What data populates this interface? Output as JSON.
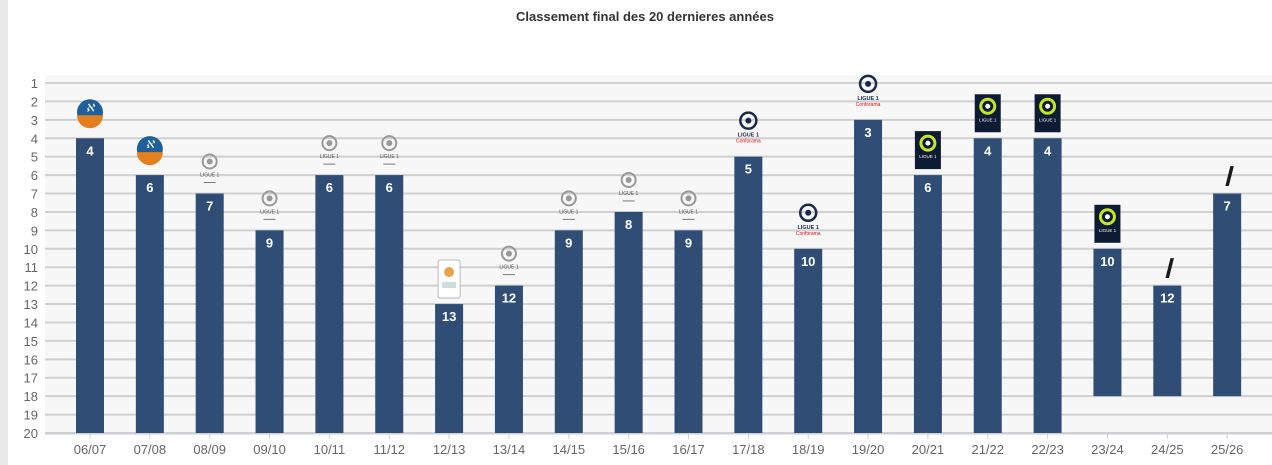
{
  "chart_data": {
    "type": "bar",
    "title": "Classement final des 20 dernieres années",
    "xlabel": "",
    "ylabel": "",
    "ylim": [
      1,
      20
    ],
    "y_inverted": true,
    "y_ticks": [
      "1",
      "2",
      "3",
      "4",
      "5",
      "6",
      "7",
      "8",
      "9",
      "10",
      "11",
      "12",
      "13",
      "14",
      "15",
      "16",
      "17",
      "18",
      "19",
      "20"
    ],
    "grid": true,
    "categories": [
      "06/07",
      "07/08",
      "08/09",
      "09/10",
      "10/11",
      "11/12",
      "12/13",
      "13/14",
      "14/15",
      "15/16",
      "16/17",
      "17/18",
      "18/19",
      "19/20",
      "20/21",
      "21/22",
      "22/23",
      "23/24",
      "24/25",
      "25/26"
    ],
    "values": [
      4,
      6,
      7,
      9,
      6,
      6,
      13,
      12,
      9,
      8,
      9,
      5,
      10,
      3,
      6,
      4,
      4,
      10,
      12,
      7
    ],
    "bar_base": [
      20,
      20,
      20,
      20,
      20,
      20,
      20,
      20,
      20,
      20,
      20,
      20,
      20,
      20,
      20,
      20,
      20,
      18,
      18,
      18
    ],
    "logos": [
      "ligue1-orange-icon",
      "ligue1-orange-icon",
      "ligue1-classic-icon",
      "ligue1-classic-icon",
      "ligue1-classic-icon",
      "ligue1-classic-icon",
      "ligue1-badge-icon",
      "ligue1-classic-icon",
      "ligue1-classic-icon",
      "ligue1-classic-icon",
      "ligue1-classic-icon",
      "ligue1-conforama-icon",
      "ligue1-conforama-icon",
      "ligue1-conforama-icon",
      "ligue1-ubereats-icon",
      "ligue1-ubereats-icon",
      "ligue1-ubereats-icon",
      "ligue1-ubereats-icon",
      "l1-icon",
      "l1-icon"
    ],
    "colors": {
      "bar": "#2f4d75",
      "plot_bg": "#f7f7f7",
      "grid": "#d0d0d0",
      "label": "#ffffff"
    }
  }
}
